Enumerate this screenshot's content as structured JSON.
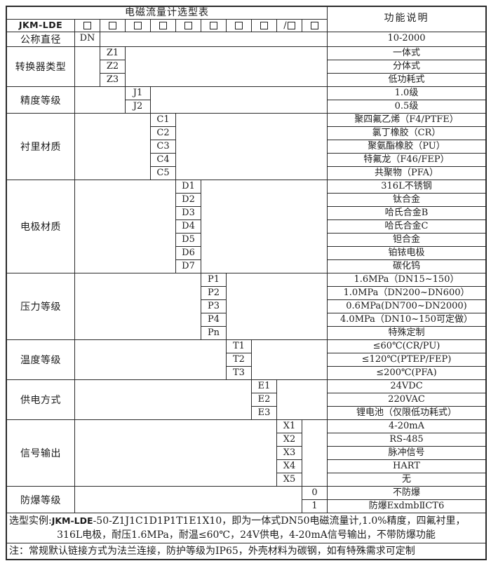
{
  "header": {
    "title": "电磁流量计选型表",
    "function_col": "功能说明",
    "model": "JKM-LDE",
    "box_count": 10,
    "slash_box_index": 9,
    "slash_char": "/"
  },
  "groups": [
    {
      "id": "nominal-diameter",
      "label": "公称直径",
      "col": 1,
      "codes": [
        "DN"
      ],
      "descs": [
        "10-2000"
      ]
    },
    {
      "id": "converter-type",
      "label": "转换器类型",
      "col": 2,
      "codes": [
        "Z1",
        "Z2",
        "Z3"
      ],
      "descs": [
        "一体式",
        "分体式",
        "低功耗式"
      ]
    },
    {
      "id": "accuracy-class",
      "label": "精度等级",
      "col": 3,
      "codes": [
        "J1",
        "J2"
      ],
      "descs": [
        "1.0级",
        "0.5级"
      ]
    },
    {
      "id": "liner-material",
      "label": "衬里材质",
      "col": 4,
      "codes": [
        "C1",
        "C2",
        "C3",
        "C4",
        "C5"
      ],
      "descs": [
        "聚四氟乙烯（F4/PTFE）",
        "氯丁橡胶（CR）",
        "聚氨酯橡胶（PU）",
        "特氟龙（F46/FEP）",
        "共聚物（PFA）"
      ]
    },
    {
      "id": "electrode-material",
      "label": "电极材质",
      "col": 5,
      "codes": [
        "D1",
        "D2",
        "D3",
        "D4",
        "D5",
        "D6",
        "D7"
      ],
      "descs": [
        "316L不锈钢",
        "钛合金",
        "哈氏合金B",
        "哈氏合金C",
        "钽合金",
        "铂铱电极",
        "碳化钨"
      ]
    },
    {
      "id": "pressure-rating",
      "label": "压力等级",
      "col": 6,
      "codes": [
        "P1",
        "P2",
        "P3",
        "P4",
        "Pn"
      ],
      "descs": [
        "1.6MPa（DN15~150）",
        "1.0MPa（DN200~DN600）",
        "0.6MPa(DN700~DN2000)",
        "4.0MPa（DN10~150可定做）",
        "特殊定制"
      ]
    },
    {
      "id": "temperature-rating",
      "label": "温度等级",
      "col": 7,
      "codes": [
        "T1",
        "T2",
        "T3"
      ],
      "descs": [
        "≤60℃(CR/PU)",
        "≤120℃(PTEP/FEP)",
        "≤200℃(PFA)"
      ]
    },
    {
      "id": "power-supply",
      "label": "供电方式",
      "col": 8,
      "codes": [
        "E1",
        "E2",
        "E3"
      ],
      "descs": [
        "24VDC",
        "220VAC",
        "锂电池（仅限低功耗式）"
      ]
    },
    {
      "id": "signal-output",
      "label": "信号输出",
      "col": 9,
      "codes": [
        "X1",
        "X2",
        "X3",
        "X4",
        "X5"
      ],
      "descs": [
        "4-20mA",
        "RS-485",
        "脉冲信号",
        "HART",
        "无"
      ]
    },
    {
      "id": "explosion-proof-rating",
      "label": "防爆等级",
      "col": 10,
      "codes": [
        "0",
        "1"
      ],
      "descs": [
        "不防爆",
        "防爆ExdmbⅡCT6"
      ]
    }
  ],
  "example": {
    "prefix": "选型实例:",
    "brand": "JKM-LDE",
    "code_suffix": "-50-Z1J1C1D1P1T1E1X10",
    "rest1": "，即为一体式DN50电磁流量计,1.0%精度，四氟衬里，",
    "line2": "316L电极，耐压1.6MPa，耐温≤60℃，24V供电，4-20mA信号输出，不带防爆功能"
  },
  "note": "注：常规默认链接方式为法兰连接，防护等级为IP65，外壳材料为碳钢，如有特殊需求可定制"
}
